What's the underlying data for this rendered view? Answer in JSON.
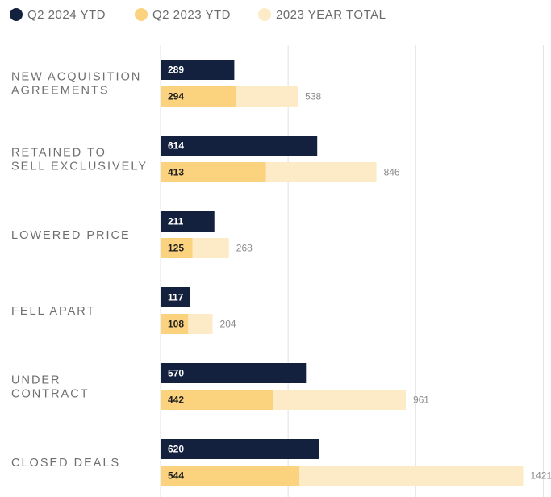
{
  "chart_data": {
    "type": "bar",
    "orientation": "horizontal",
    "legend_position": "top-left",
    "grid": true,
    "xlim": [
      0,
      1500
    ],
    "gridlines": [
      0,
      500,
      1000,
      1500
    ],
    "categories": [
      [
        "NEW ACQUISITION",
        "AGREEMENTS"
      ],
      [
        "RETAINED TO",
        "SELL EXCLUSIVELY"
      ],
      [
        "LOWERED PRICE"
      ],
      [
        "FELL APART"
      ],
      [
        "UNDER",
        "CONTRACT"
      ],
      [
        "CLOSED DEALS"
      ]
    ],
    "series": [
      {
        "name": "Q2 2024 YTD",
        "color": "#13213f",
        "values": [
          289,
          614,
          211,
          117,
          570,
          620
        ]
      },
      {
        "name": "Q2 2023 YTD",
        "color": "#fbd27e",
        "values": [
          294,
          413,
          125,
          108,
          442,
          544
        ]
      },
      {
        "name": "2023 YEAR TOTAL",
        "color": "#fdebc8",
        "values": [
          538,
          846,
          268,
          204,
          961,
          1421
        ]
      }
    ]
  }
}
